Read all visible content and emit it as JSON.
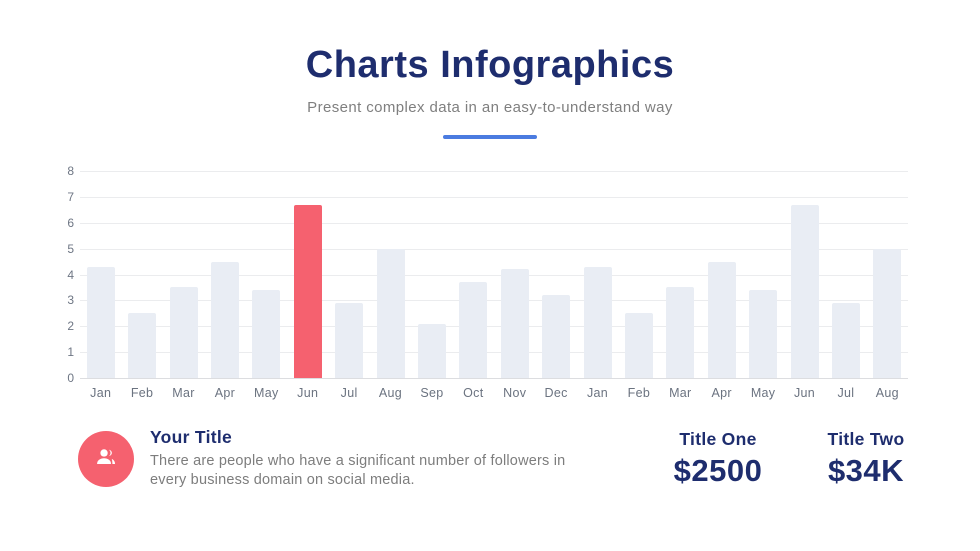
{
  "header": {
    "title": "Charts Infographics",
    "subtitle": "Present complex data in an easy-to-understand way"
  },
  "chart_data": {
    "type": "bar",
    "categories": [
      "Jan",
      "Feb",
      "Mar",
      "Apr",
      "May",
      "Jun",
      "Jul",
      "Aug",
      "Sep",
      "Oct",
      "Nov",
      "Dec",
      "Jan",
      "Feb",
      "Mar",
      "Apr",
      "May",
      "Jun",
      "Jul",
      "Aug"
    ],
    "values": [
      4.3,
      2.5,
      3.5,
      4.5,
      3.4,
      6.7,
      2.9,
      5.0,
      2.1,
      3.7,
      4.2,
      3.2,
      4.3,
      2.5,
      3.5,
      4.5,
      3.4,
      6.7,
      2.9,
      5.0
    ],
    "highlight_index": 5,
    "title": "",
    "xlabel": "",
    "ylabel": "",
    "ylim": [
      0,
      8
    ],
    "yticks": [
      0,
      1,
      2,
      3,
      4,
      5,
      6,
      7,
      8
    ],
    "grid": true,
    "legend": false,
    "bar_color": "#e9edf4",
    "highlight_color": "#f5616f"
  },
  "footer": {
    "icon": "people-icon",
    "icon_bg": "#f5616f",
    "title": "Your Title",
    "description": "There are people who have a significant number of followers in every business domain on social media.",
    "stats": [
      {
        "label": "Title One",
        "value": "$2500"
      },
      {
        "label": "Title Two",
        "value": "$34K"
      }
    ]
  },
  "colors": {
    "heading_navy": "#1e2d6e",
    "subtitle_gray": "#7f7f7f",
    "accent_blue": "#4b7be0",
    "bar_gray": "#e9edf4",
    "highlight_red": "#f5616f",
    "gridline_gray": "#ebecee",
    "axis_label_gray": "#6b7380"
  }
}
